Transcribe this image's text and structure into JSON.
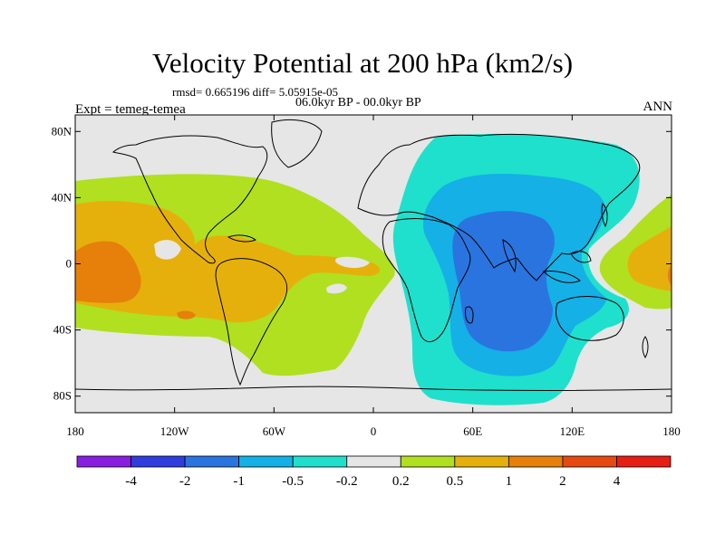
{
  "title": "Velocity Potential at 200 hPa (km2/s)",
  "stats": "rmsd= 0.665196 diff= 5.05915e-05",
  "experiment": "Expt = temeg-temea",
  "period": "06.0kyr BP - 00.0kyr BP",
  "season": "ANN",
  "axes": {
    "lat_ticks": [
      {
        "value": 80,
        "label": "80N"
      },
      {
        "value": 40,
        "label": "40N"
      },
      {
        "value": 0,
        "label": "0"
      },
      {
        "value": -40,
        "label": "40S"
      },
      {
        "value": -80,
        "label": "80S"
      }
    ],
    "lon_ticks": [
      {
        "value": -180,
        "label": "180"
      },
      {
        "value": -120,
        "label": "120W"
      },
      {
        "value": -60,
        "label": "60W"
      },
      {
        "value": 0,
        "label": "0"
      },
      {
        "value": 60,
        "label": "60E"
      },
      {
        "value": 120,
        "label": "120E"
      },
      {
        "value": 180,
        "label": "180"
      }
    ],
    "lon_range": [
      -180,
      180
    ],
    "lat_range": [
      -90,
      90
    ]
  },
  "colorbar": {
    "colors": [
      "#8a1ee0",
      "#2f3ddc",
      "#2a74e0",
      "#15b0e6",
      "#1fe0cc",
      "#e6e6e6",
      "#b0e020",
      "#e6b00c",
      "#e6800a",
      "#e64a10",
      "#e61e14"
    ],
    "labels": [
      "-4",
      "-2",
      "-1",
      "-0.5",
      "-0.2",
      "0.2",
      "0.5",
      "1",
      "2",
      "4"
    ]
  },
  "field_colors": {
    "background": "#e6e6e6",
    "level_0_2": "#b0e020",
    "level_0_5": "#e6b00c",
    "level_1": "#e6800a",
    "level_neg_0_2": "#1fe0cc",
    "level_neg_0_5": "#15b0e6",
    "level_neg_1": "#2a74e0"
  }
}
